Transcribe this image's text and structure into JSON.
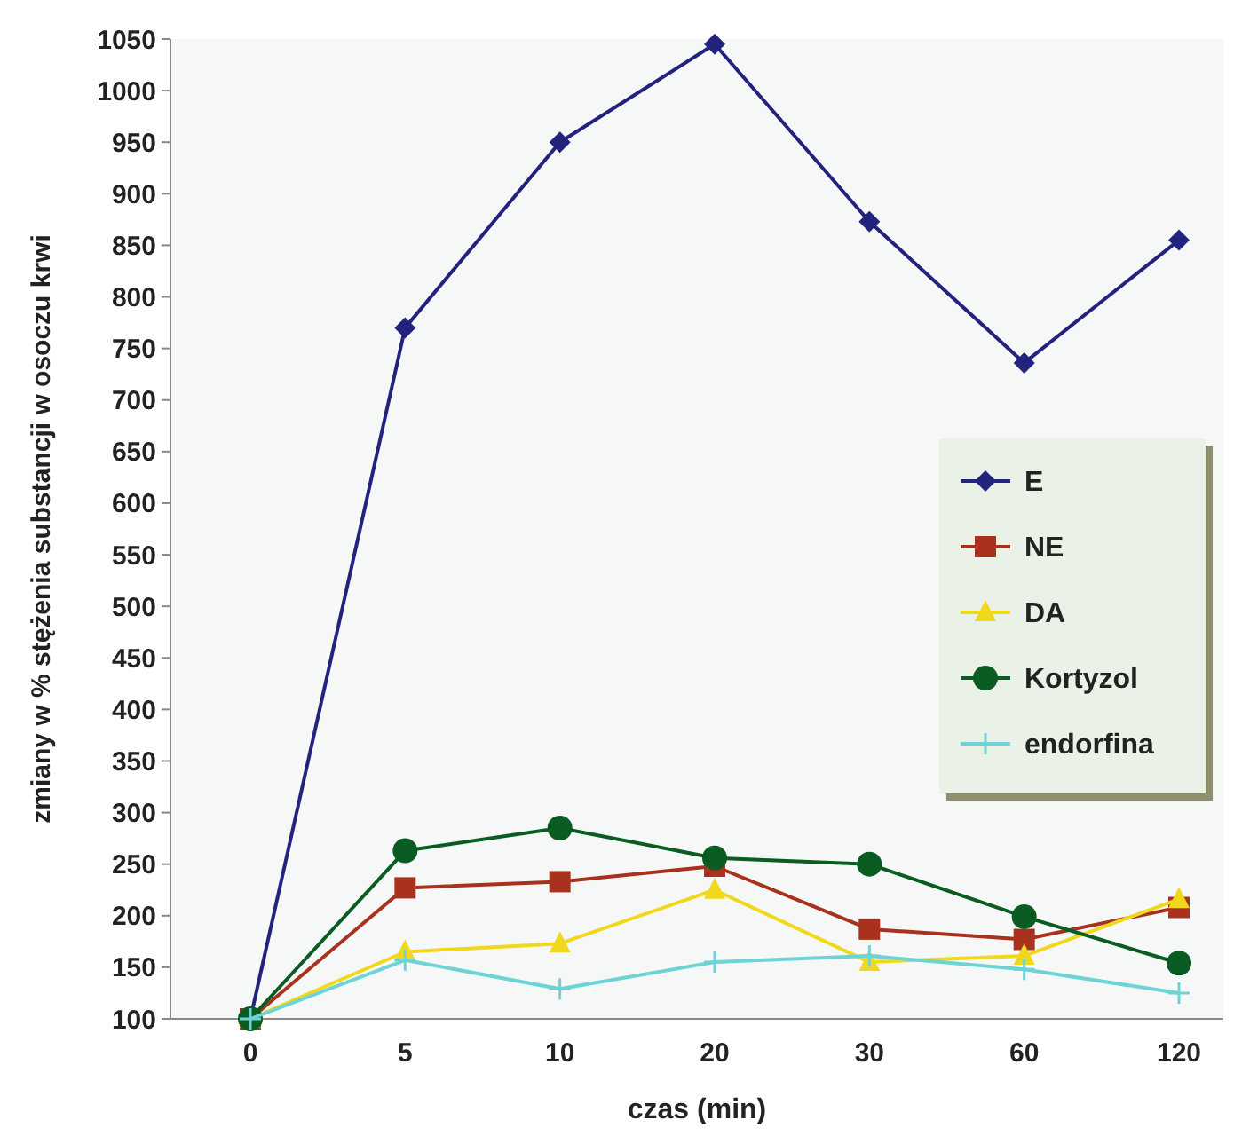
{
  "chart_data": {
    "type": "line",
    "xlabel": "czas (min)",
    "ylabel": "zmiany w % stężenia substancji w osoczu krwi",
    "categories": [
      "0",
      "5",
      "10",
      "20",
      "30",
      "60",
      "120"
    ],
    "series": [
      {
        "name": "E",
        "color": "#23237e",
        "marker": "diamond",
        "values": [
          100,
          770,
          950,
          1045,
          873,
          736,
          855
        ]
      },
      {
        "name": "NE",
        "color": "#a8321e",
        "marker": "square",
        "values": [
          100,
          227,
          233,
          248,
          187,
          177,
          208
        ]
      },
      {
        "name": "DA",
        "color": "#f2d81c",
        "marker": "triangle",
        "values": [
          100,
          165,
          173,
          225,
          155,
          161,
          216
        ]
      },
      {
        "name": "Kortyzol",
        "color": "#0b5c22",
        "marker": "circle",
        "values": [
          100,
          263,
          285,
          256,
          250,
          199,
          154
        ]
      },
      {
        "name": "endorfina",
        "color": "#6ed3d6",
        "marker": "cross",
        "values": [
          100,
          157,
          129,
          155,
          161,
          148,
          125
        ]
      }
    ],
    "ylim": [
      100,
      1050
    ],
    "yticks": [
      100,
      150,
      200,
      250,
      300,
      350,
      400,
      450,
      500,
      550,
      600,
      650,
      700,
      750,
      800,
      850,
      900,
      950,
      1000,
      1050
    ],
    "grid": false,
    "legend": "right"
  }
}
